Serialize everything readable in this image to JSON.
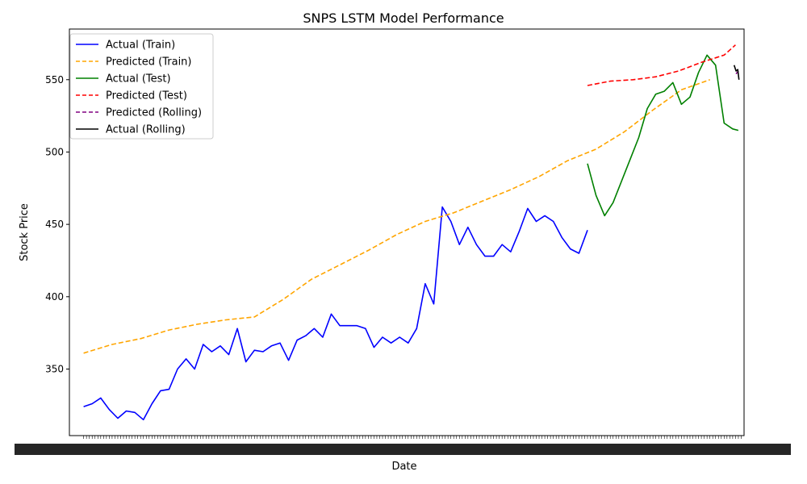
{
  "chart_data": {
    "type": "line",
    "title": "SNPS LSTM Model Performance",
    "xlabel": "Date",
    "ylabel": "Stock Price",
    "xlim": [
      -5,
      232
    ],
    "ylim": [
      304,
      585
    ],
    "y_ticks": [
      350,
      400,
      450,
      500,
      550
    ],
    "x_ticklabels_overlapping": true,
    "grid": false,
    "legend_position": "top-left",
    "series": [
      {
        "name": "Actual (Train)",
        "color": "#0000ff",
        "style": "solid",
        "x": [
          0,
          3,
          6,
          9,
          12,
          15,
          18,
          21,
          24,
          27,
          30,
          33,
          36,
          39,
          42,
          45,
          48,
          51,
          54,
          57,
          60,
          63,
          66,
          69,
          72,
          75,
          78,
          81,
          84,
          87,
          90,
          93,
          96,
          99,
          102,
          105,
          108,
          111,
          114,
          117,
          120,
          123,
          126,
          129,
          132,
          135,
          138,
          141,
          144,
          147,
          150,
          153,
          156,
          159,
          162,
          165,
          168,
          171,
          174,
          177
        ],
        "y": [
          324,
          326,
          330,
          322,
          316,
          321,
          320,
          315,
          326,
          335,
          336,
          350,
          357,
          350,
          367,
          362,
          366,
          360,
          378,
          355,
          363,
          362,
          366,
          368,
          356,
          370,
          373,
          378,
          372,
          388,
          380,
          380,
          380,
          378,
          365,
          372,
          368,
          372,
          368,
          378,
          409,
          395,
          462,
          452,
          436,
          448,
          436,
          428,
          428,
          436,
          431,
          445,
          461,
          452,
          456,
          452,
          441,
          433,
          430,
          446
        ]
      },
      {
        "name": "Predicted (Train)",
        "color": "#ffa500",
        "style": "dashed",
        "x": [
          0,
          10,
          20,
          30,
          40,
          50,
          60,
          70,
          80,
          90,
          100,
          110,
          120,
          130,
          140,
          150,
          160,
          170,
          180,
          190,
          200,
          210,
          220
        ],
        "y": [
          361,
          367,
          371,
          377,
          381,
          384,
          386,
          398,
          412,
          422,
          432,
          443,
          452,
          458,
          466,
          474,
          483,
          494,
          502,
          514,
          529,
          543,
          550
        ]
      },
      {
        "name": "Actual (Test)",
        "color": "#008000",
        "style": "solid",
        "x": [
          177,
          180,
          183,
          186,
          189,
          192,
          195,
          198,
          201,
          204,
          207,
          210,
          213,
          216,
          219,
          222,
          225,
          228,
          230
        ],
        "y": [
          492,
          470,
          456,
          465,
          480,
          495,
          510,
          530,
          540,
          542,
          548,
          533,
          538,
          555,
          567,
          560,
          520,
          516,
          515
        ]
      },
      {
        "name": "Predicted (Test)",
        "color": "#ff0000",
        "style": "dashed",
        "x": [
          177,
          185,
          193,
          201,
          209,
          217,
          225,
          229
        ],
        "y": [
          546,
          549,
          550,
          552,
          556,
          562,
          567,
          574
        ]
      },
      {
        "name": "Predicted (Rolling)",
        "color": "#800080",
        "style": "dashed",
        "x": [
          229.2,
          229.6,
          230.0
        ],
        "y": [
          554,
          555,
          556
        ]
      },
      {
        "name": "Actual (Rolling)",
        "color": "#000000",
        "style": "solid",
        "x": [
          228.5,
          229.2,
          229.8,
          230.2
        ],
        "y": [
          560,
          556,
          557,
          550
        ]
      }
    ]
  }
}
